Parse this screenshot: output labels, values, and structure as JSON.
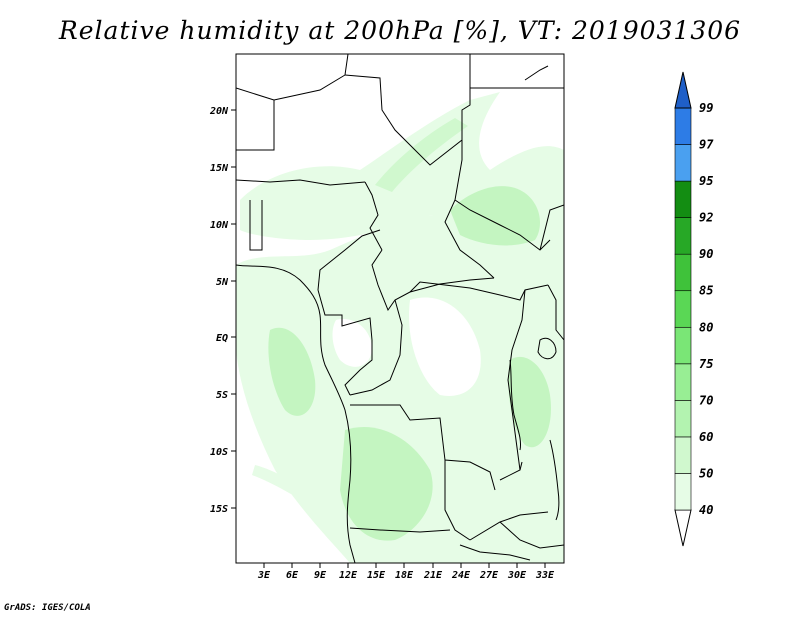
{
  "title": "Relative humidity at 200hPa [%], VT: 2019031306",
  "credit": "GrADS: IGES/COLA",
  "map": {
    "lat_labels": [
      "20N",
      "15N",
      "10N",
      "5N",
      "EQ",
      "5S",
      "10S",
      "15S"
    ],
    "lon_labels": [
      "3E",
      "6E",
      "9E",
      "12E",
      "15E",
      "18E",
      "21E",
      "24E",
      "27E",
      "30E",
      "33E"
    ]
  },
  "colorbar": {
    "levels": [
      "40",
      "50",
      "60",
      "70",
      "75",
      "80",
      "85",
      "90",
      "92",
      "95",
      "97",
      "99"
    ],
    "colors": [
      "#ffffff",
      "#e6fce6",
      "#d0f8ce",
      "#b3f3b0",
      "#98ee94",
      "#7ae676",
      "#5ad755",
      "#3fc23a",
      "#27a826",
      "#138d12",
      "#4aa0f0",
      "#2d7ce6",
      "#1f5fc8"
    ]
  }
}
